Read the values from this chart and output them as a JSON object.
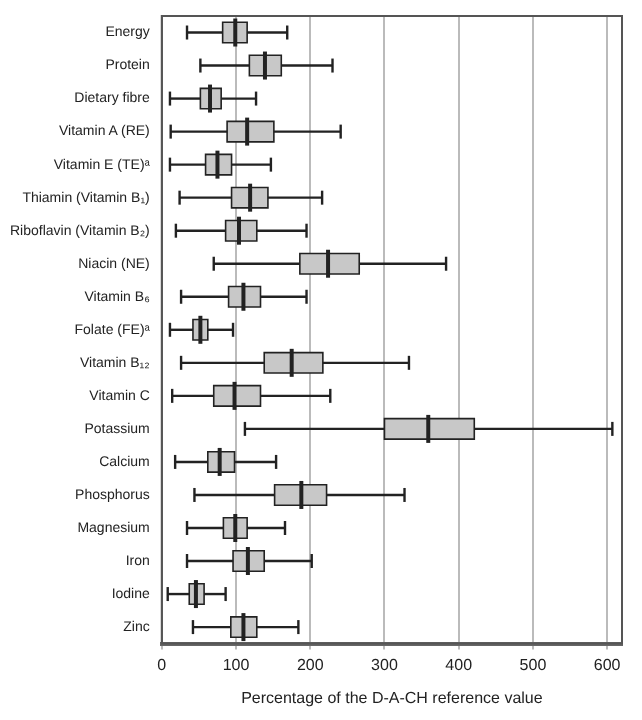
{
  "chart_data": {
    "type": "box",
    "orientation": "horizontal",
    "xlabel": "Percentage of the D-A-CH reference value",
    "categories": [
      "Energy",
      "Protein",
      "Dietary fibre",
      "Vitamin A (RE)",
      "Vitamin E (TE)ᵃ",
      "Thiamin (Vitamin B₁)",
      "Riboflavin (Vitamin B₂)",
      "Niacin (NE)",
      "Vitamin B₆",
      "Folate (FE)ᵃ",
      "Vitamin B₁₂",
      "Vitamin C",
      "Potassium",
      "Calcium",
      "Phosphorus",
      "Magnesium",
      "Iron",
      "Iodine",
      "Zinc"
    ],
    "color": "#c8c8c8",
    "boxes": [
      {
        "low": 34,
        "q1": 82,
        "median": 99,
        "q3": 115,
        "high": 169
      },
      {
        "low": 52,
        "q1": 118,
        "median": 139,
        "q3": 161,
        "high": 230
      },
      {
        "low": 11,
        "q1": 52,
        "median": 65,
        "q3": 80,
        "high": 127
      },
      {
        "low": 12,
        "q1": 88,
        "median": 115,
        "q3": 151,
        "high": 241
      },
      {
        "low": 11,
        "q1": 59,
        "median": 75,
        "q3": 94,
        "high": 147
      },
      {
        "low": 24,
        "q1": 94,
        "median": 119,
        "q3": 143,
        "high": 216
      },
      {
        "low": 19,
        "q1": 86,
        "median": 104,
        "q3": 128,
        "high": 195
      },
      {
        "low": 70,
        "q1": 186,
        "median": 224,
        "q3": 266,
        "high": 383
      },
      {
        "low": 26,
        "q1": 90,
        "median": 110,
        "q3": 133,
        "high": 195
      },
      {
        "low": 11,
        "q1": 42,
        "median": 52,
        "q3": 62,
        "high": 96
      },
      {
        "low": 26,
        "q1": 138,
        "median": 175,
        "q3": 217,
        "high": 333
      },
      {
        "low": 14,
        "q1": 70,
        "median": 98,
        "q3": 133,
        "high": 227
      },
      {
        "low": 112,
        "q1": 300,
        "median": 359,
        "q3": 421,
        "high": 607
      },
      {
        "low": 18,
        "q1": 62,
        "median": 78,
        "q3": 98,
        "high": 154
      },
      {
        "low": 44,
        "q1": 152,
        "median": 188,
        "q3": 222,
        "high": 327
      },
      {
        "low": 34,
        "q1": 83,
        "median": 99,
        "q3": 115,
        "high": 166
      },
      {
        "low": 34,
        "q1": 96,
        "median": 116,
        "q3": 138,
        "high": 202
      },
      {
        "low": 8,
        "q1": 37,
        "median": 46,
        "q3": 57,
        "high": 86
      },
      {
        "low": 42,
        "q1": 93,
        "median": 110,
        "q3": 128,
        "high": 184
      }
    ],
    "xlim": [
      0,
      620
    ],
    "xticks": [
      0,
      100,
      200,
      300,
      400,
      500,
      600
    ],
    "grid": "x"
  }
}
